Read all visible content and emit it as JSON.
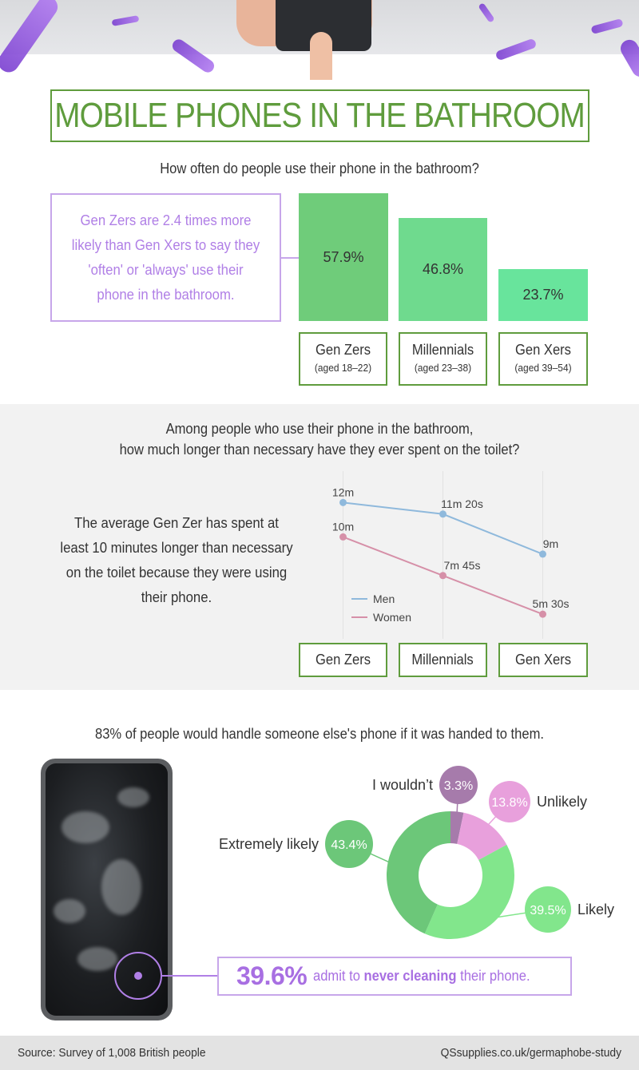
{
  "title": "MOBILE PHONES IN THE BATHROOM",
  "section1": {
    "question": "How often do people use their phone in the bathroom?",
    "callout": "Gen Zers are 2.4 times more likely than Gen Xers to say they 'often' or 'always' use their phone in the bathroom.",
    "colors": {
      "callout": "#b07fe6",
      "accent": "#5f9c3d"
    }
  },
  "section2": {
    "question_line1": "Among people who use their phone in the bathroom,",
    "question_line2": "how much longer than necessary have they ever spent on the toilet?",
    "statement": "The average Gen Zer has spent at least 10 minutes longer than necessary on the toilet because they were using their phone."
  },
  "section3": {
    "question": "83% of people would handle someone else's phone if it was handed to them.",
    "cleaning_pct": "39.6%",
    "cleaning_pre": "admit to ",
    "cleaning_bold": "never cleaning",
    "cleaning_post": " their phone."
  },
  "footer": {
    "source": "Source: Survey of 1,008 British people",
    "url": "QSsupplies.co.uk/germaphobe-study"
  },
  "chart_data": [
    {
      "type": "bar",
      "categories": [
        "Gen Zers",
        "Millennials",
        "Gen Xers"
      ],
      "category_sublabels": [
        "(aged 18–22)",
        "(aged 23–38)",
        "(aged 39–54)"
      ],
      "values": [
        57.9,
        46.8,
        23.7
      ],
      "data_labels": [
        "57.9%",
        "46.8%",
        "23.7%"
      ],
      "colors": [
        "#6fcc7a",
        "#6fda8e",
        "#68e49c"
      ],
      "ylim": [
        0,
        57.9
      ]
    },
    {
      "type": "line",
      "categories": [
        "Gen Zers",
        "Millennials",
        "Gen Xers"
      ],
      "series": [
        {
          "name": "Men",
          "values": [
            12,
            11.33,
            9
          ],
          "data_labels": [
            "12m",
            "11m 20s",
            "9m"
          ],
          "color": "#8fb9dc"
        },
        {
          "name": "Women",
          "values": [
            10,
            7.75,
            5.5
          ],
          "data_labels": [
            "10m",
            "7m 45s",
            "5m 30s"
          ],
          "color": "#d690a8"
        }
      ],
      "legend": "bottom-left",
      "ylim": [
        4.3,
        12.9
      ]
    },
    {
      "type": "pie",
      "labels": [
        "I wouldn’t",
        "Unlikely",
        "Likely",
        "Extremely likely"
      ],
      "values": [
        3.3,
        13.8,
        39.5,
        43.4
      ],
      "data_labels": [
        "3.3%",
        "13.8%",
        "39.5%",
        "43.4%"
      ],
      "colors": [
        "#a67bab",
        "#e8a0dc",
        "#82e68c",
        "#6cc779"
      ]
    }
  ]
}
